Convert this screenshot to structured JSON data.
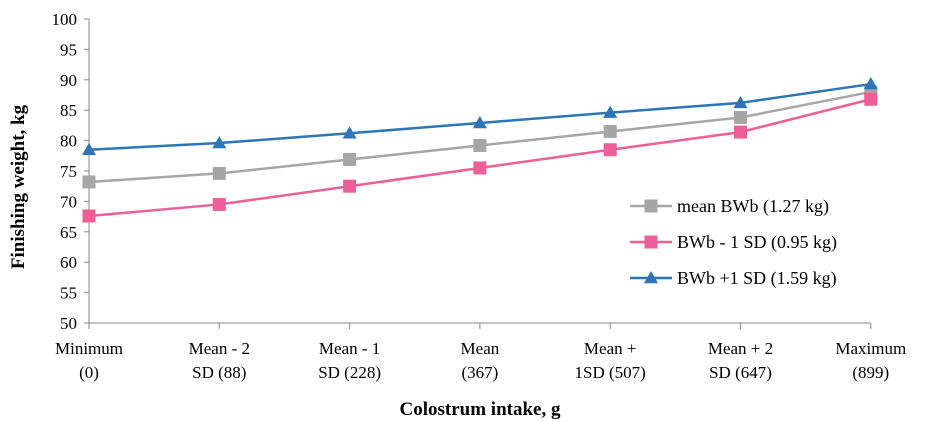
{
  "chart_data": {
    "type": "line",
    "title": "",
    "xlabel": "Colostrum intake, g",
    "ylabel": "Finishing weight, kg",
    "ylim": [
      50,
      100
    ],
    "yticks": [
      50,
      55,
      60,
      65,
      70,
      75,
      80,
      85,
      90,
      95,
      100
    ],
    "grid": false,
    "legend_position": "right",
    "categories": [
      [
        "Minimum",
        "(0)"
      ],
      [
        "Mean - 2",
        "SD (88)"
      ],
      [
        "Mean - 1",
        "SD (228)"
      ],
      [
        "Mean",
        "(367)"
      ],
      [
        "Mean +",
        "1SD (507)"
      ],
      [
        "Mean + 2",
        "SD (647)"
      ],
      [
        "Maximum",
        "(899)"
      ]
    ],
    "series": [
      {
        "name": "mean BWb (1.27 kg)",
        "color": "#a6a6a6",
        "marker": "square",
        "values": [
          73.2,
          74.6,
          76.9,
          79.2,
          81.5,
          83.8,
          88.0
        ]
      },
      {
        "name": "BWb - 1 SD (0.95 kg)",
        "color": "#ec5f97",
        "marker": "square",
        "values": [
          67.6,
          69.5,
          72.5,
          75.5,
          78.5,
          81.4,
          86.8
        ]
      },
      {
        "name": "BWb +1 SD (1.59 kg)",
        "color": "#2e75b6",
        "marker": "triangle",
        "values": [
          78.5,
          79.6,
          81.2,
          82.9,
          84.6,
          86.2,
          89.3
        ]
      }
    ]
  }
}
